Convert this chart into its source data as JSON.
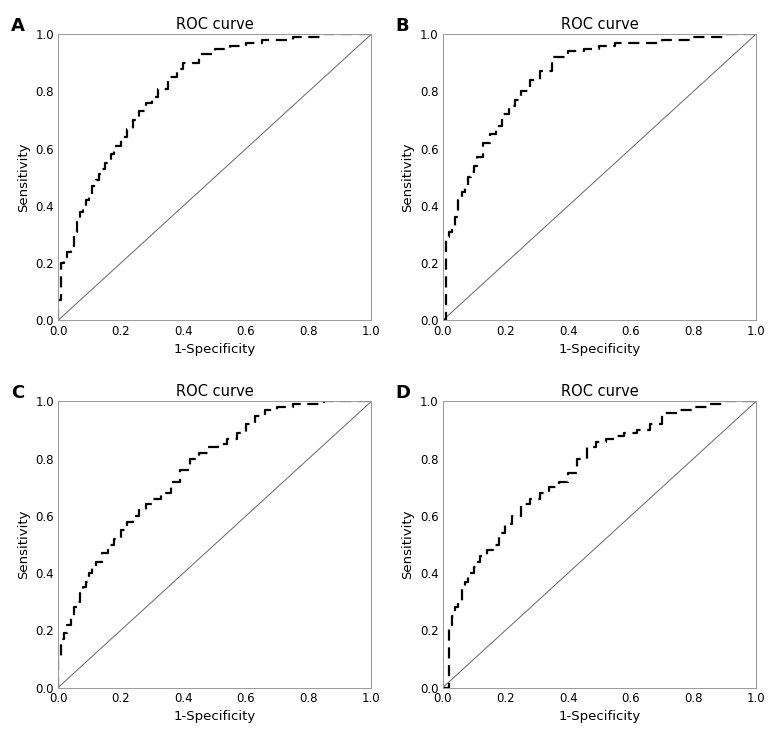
{
  "title": "ROC curve",
  "xlabel": "1-Specificity",
  "ylabel": "Sensitivity",
  "panels": [
    "A",
    "B",
    "C",
    "D"
  ],
  "roc_A": {
    "fpr": [
      0.0,
      0.0,
      0.01,
      0.01,
      0.02,
      0.03,
      0.04,
      0.05,
      0.06,
      0.07,
      0.08,
      0.09,
      0.1,
      0.11,
      0.12,
      0.13,
      0.14,
      0.15,
      0.17,
      0.18,
      0.2,
      0.22,
      0.24,
      0.26,
      0.28,
      0.3,
      0.32,
      0.35,
      0.38,
      0.4,
      0.45,
      0.5,
      0.55,
      0.6,
      0.65,
      0.7,
      0.75,
      0.8,
      0.85,
      0.9,
      0.95,
      1.0
    ],
    "tpr": [
      0.0,
      0.07,
      0.07,
      0.2,
      0.22,
      0.24,
      0.26,
      0.31,
      0.35,
      0.38,
      0.4,
      0.42,
      0.44,
      0.47,
      0.49,
      0.51,
      0.53,
      0.55,
      0.58,
      0.61,
      0.64,
      0.67,
      0.7,
      0.73,
      0.76,
      0.78,
      0.81,
      0.85,
      0.88,
      0.9,
      0.93,
      0.95,
      0.96,
      0.97,
      0.98,
      0.98,
      0.99,
      0.99,
      1.0,
      1.0,
      1.0,
      1.0
    ]
  },
  "roc_B": {
    "fpr": [
      0.0,
      0.0,
      0.01,
      0.01,
      0.02,
      0.03,
      0.04,
      0.05,
      0.06,
      0.07,
      0.08,
      0.09,
      0.1,
      0.11,
      0.13,
      0.15,
      0.17,
      0.19,
      0.21,
      0.23,
      0.25,
      0.28,
      0.31,
      0.35,
      0.4,
      0.45,
      0.5,
      0.55,
      0.6,
      0.65,
      0.7,
      0.75,
      0.8,
      0.85,
      0.9,
      0.95,
      1.0
    ],
    "tpr": [
      0.0,
      0.0,
      0.0,
      0.29,
      0.31,
      0.33,
      0.36,
      0.42,
      0.45,
      0.47,
      0.5,
      0.52,
      0.54,
      0.57,
      0.62,
      0.65,
      0.68,
      0.72,
      0.75,
      0.77,
      0.8,
      0.84,
      0.87,
      0.92,
      0.94,
      0.95,
      0.96,
      0.97,
      0.97,
      0.97,
      0.98,
      0.98,
      0.99,
      0.99,
      1.0,
      1.0,
      1.0
    ]
  },
  "roc_C": {
    "fpr": [
      0.0,
      0.0,
      0.01,
      0.02,
      0.03,
      0.04,
      0.05,
      0.06,
      0.07,
      0.08,
      0.09,
      0.1,
      0.11,
      0.12,
      0.14,
      0.16,
      0.18,
      0.2,
      0.22,
      0.24,
      0.26,
      0.28,
      0.3,
      0.33,
      0.36,
      0.39,
      0.42,
      0.45,
      0.48,
      0.51,
      0.54,
      0.57,
      0.6,
      0.63,
      0.66,
      0.7,
      0.75,
      0.8,
      0.85,
      0.9,
      0.95,
      1.0
    ],
    "tpr": [
      0.0,
      0.1,
      0.17,
      0.19,
      0.22,
      0.25,
      0.28,
      0.3,
      0.33,
      0.35,
      0.37,
      0.4,
      0.42,
      0.44,
      0.47,
      0.5,
      0.52,
      0.55,
      0.58,
      0.6,
      0.62,
      0.64,
      0.66,
      0.68,
      0.72,
      0.76,
      0.8,
      0.82,
      0.84,
      0.85,
      0.87,
      0.89,
      0.92,
      0.95,
      0.97,
      0.98,
      0.99,
      0.99,
      1.0,
      1.0,
      1.0,
      1.0
    ]
  },
  "roc_D": {
    "fpr": [
      0.0,
      0.0,
      0.02,
      0.03,
      0.04,
      0.05,
      0.06,
      0.07,
      0.08,
      0.09,
      0.1,
      0.11,
      0.12,
      0.14,
      0.16,
      0.18,
      0.2,
      0.22,
      0.25,
      0.28,
      0.31,
      0.34,
      0.37,
      0.4,
      0.43,
      0.46,
      0.49,
      0.52,
      0.55,
      0.58,
      0.62,
      0.66,
      0.7,
      0.75,
      0.8,
      0.85,
      0.9,
      0.95,
      1.0
    ],
    "tpr": [
      0.0,
      0.0,
      0.22,
      0.25,
      0.28,
      0.3,
      0.35,
      0.37,
      0.39,
      0.4,
      0.42,
      0.44,
      0.46,
      0.48,
      0.5,
      0.54,
      0.57,
      0.6,
      0.64,
      0.66,
      0.68,
      0.7,
      0.72,
      0.75,
      0.8,
      0.84,
      0.86,
      0.87,
      0.88,
      0.89,
      0.9,
      0.92,
      0.96,
      0.97,
      0.98,
      0.99,
      1.0,
      1.0,
      1.0
    ]
  },
  "line_color": "#000000",
  "diag_color": "#666666",
  "bg_color": "#ffffff",
  "tick_labels": [
    "0.0",
    "0.2",
    "0.4",
    "0.6",
    "0.8",
    "1.0"
  ],
  "tick_values": [
    0.0,
    0.2,
    0.4,
    0.6,
    0.8,
    1.0
  ],
  "dashes": [
    5,
    3
  ],
  "linewidth": 1.6,
  "diag_linewidth": 0.7
}
